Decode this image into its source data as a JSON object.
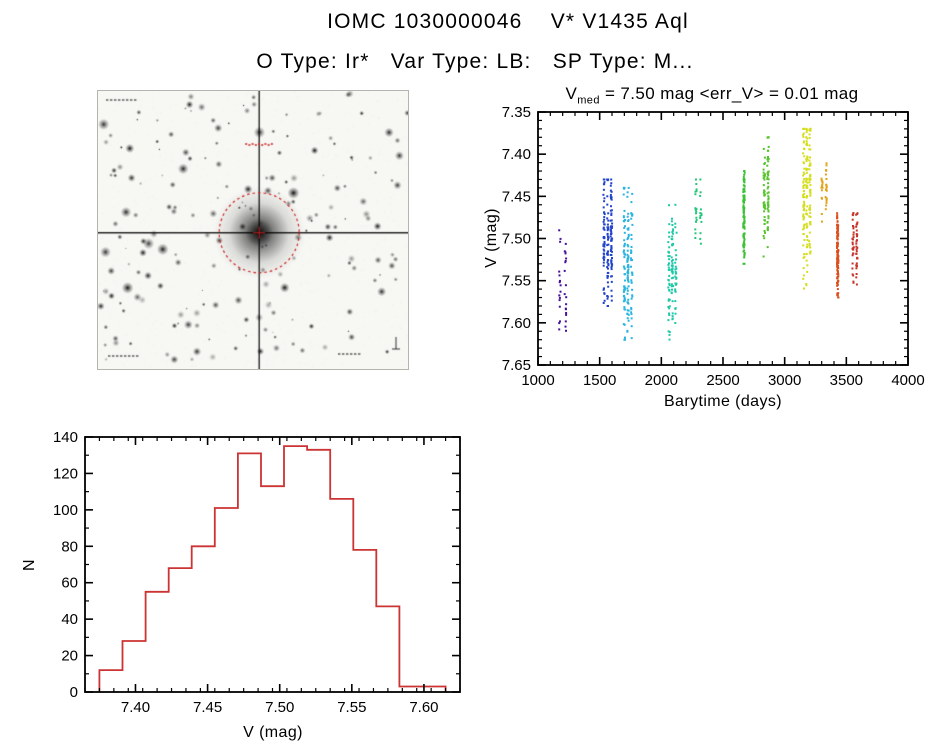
{
  "page": {
    "title": "IOMC 1030000046    V* V1435 Aql",
    "subtitle": "O Type: Ir*   Var Type: LB:   SP Type: M..."
  },
  "finder_chart": {
    "overlay_color": "#cc2222",
    "description_visible": "star field finding chart with crosshair and dotted aperture circle"
  },
  "chart_data": [
    {
      "type": "scatter",
      "title_parts": {
        "prefix": "V",
        "sub": "med",
        "rest": " = 7.50 mag <err_V> = 0.01 mag"
      },
      "xlabel": "Barytime (days)",
      "ylabel": "V (mag)",
      "xlim": [
        1000,
        4000
      ],
      "ylim": [
        7.35,
        7.65
      ],
      "y_inverted": true,
      "grid": false,
      "legend": "none",
      "xticks": [
        1000,
        1500,
        2000,
        2500,
        3000,
        3500,
        4000
      ],
      "yticks": [
        7.35,
        7.4,
        7.45,
        7.5,
        7.55,
        7.6,
        7.65
      ],
      "x_minor_step": 100,
      "y_minor_step": 0.01,
      "clusters": [
        {
          "name": "epoch-01",
          "barytime": 1200,
          "x_spread": 45,
          "v_center": 7.55,
          "v_min": 7.49,
          "v_max": 7.61,
          "n": 35,
          "color": "#46119c"
        },
        {
          "name": "epoch-02",
          "barytime": 1565,
          "x_spread": 60,
          "v_center": 7.5,
          "v_min": 7.43,
          "v_max": 7.58,
          "n": 160,
          "color": "#2244cc"
        },
        {
          "name": "epoch-03",
          "barytime": 1730,
          "x_spread": 60,
          "v_center": 7.53,
          "v_min": 7.44,
          "v_max": 7.62,
          "n": 150,
          "color": "#2ab4e0"
        },
        {
          "name": "epoch-04",
          "barytime": 2090,
          "x_spread": 55,
          "v_center": 7.54,
          "v_min": 7.46,
          "v_max": 7.62,
          "n": 110,
          "color": "#1fc9a7"
        },
        {
          "name": "epoch-05",
          "barytime": 2300,
          "x_spread": 40,
          "v_center": 7.47,
          "v_min": 7.43,
          "v_max": 7.53,
          "n": 30,
          "color": "#25c878"
        },
        {
          "name": "epoch-06",
          "barytime": 2670,
          "x_spread": 25,
          "v_center": 7.47,
          "v_min": 7.42,
          "v_max": 7.53,
          "n": 110,
          "color": "#3cc233"
        },
        {
          "name": "epoch-07",
          "barytime": 2850,
          "x_spread": 30,
          "v_center": 7.45,
          "v_min": 7.38,
          "v_max": 7.53,
          "n": 90,
          "color": "#55c32a"
        },
        {
          "name": "epoch-08",
          "barytime": 3180,
          "x_spread": 50,
          "v_center": 7.45,
          "v_min": 7.37,
          "v_max": 7.56,
          "n": 170,
          "color": "#d5de1e"
        },
        {
          "name": "epoch-09",
          "barytime": 3320,
          "x_spread": 35,
          "v_center": 7.44,
          "v_min": 7.4,
          "v_max": 7.48,
          "n": 35,
          "color": "#e2a31b"
        },
        {
          "name": "epoch-10",
          "barytime": 3430,
          "x_spread": 25,
          "v_center": 7.52,
          "v_min": 7.47,
          "v_max": 7.57,
          "n": 120,
          "color": "#dc4f1d"
        },
        {
          "name": "epoch-11",
          "barytime": 3570,
          "x_spread": 30,
          "v_center": 7.51,
          "v_min": 7.47,
          "v_max": 7.56,
          "n": 60,
          "color": "#c8342a"
        }
      ]
    },
    {
      "type": "bar",
      "style": "step-outline",
      "color": "#cc3333",
      "xlabel": "V (mag)",
      "ylabel": "N",
      "xlim": [
        7.365,
        7.625
      ],
      "ylim": [
        0,
        140
      ],
      "grid": false,
      "legend": "none",
      "xticks": [
        7.4,
        7.45,
        7.5,
        7.55,
        7.6
      ],
      "yticks": [
        0,
        20,
        40,
        60,
        80,
        100,
        120,
        140
      ],
      "x_minor_step": 0.01,
      "y_minor_step": 10,
      "bin_start": 7.375,
      "bin_width": 0.016,
      "counts": [
        12,
        28,
        55,
        68,
        80,
        101,
        131,
        113,
        135,
        133,
        106,
        78,
        47,
        3,
        3
      ]
    }
  ]
}
